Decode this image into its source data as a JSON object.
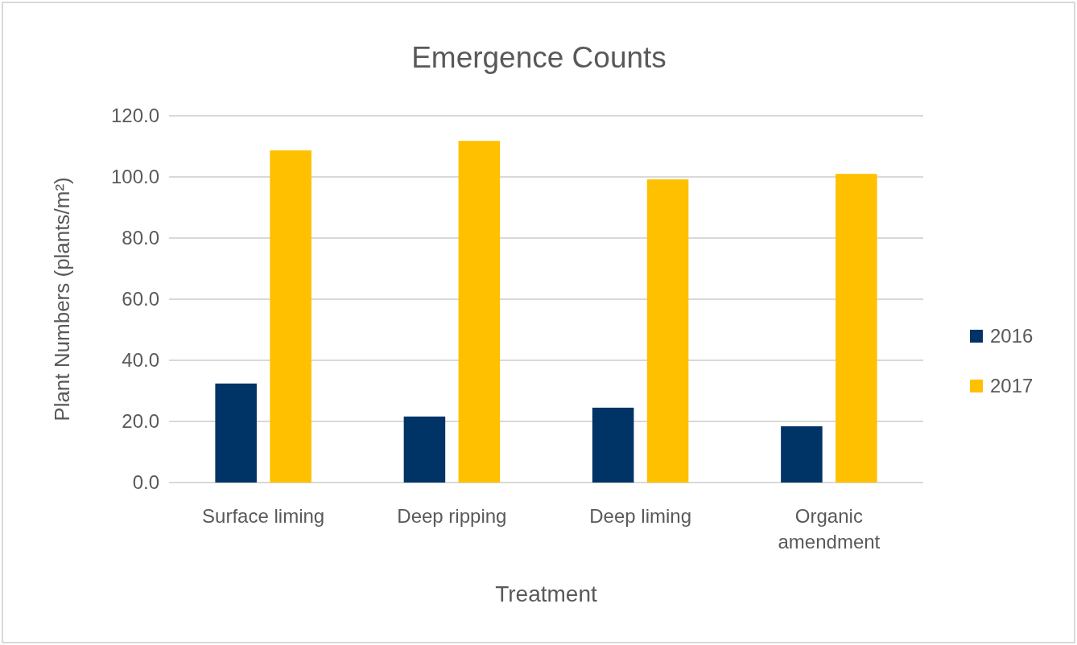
{
  "chart_data": {
    "type": "bar",
    "title": "Emergence Counts",
    "xlabel": "Treatment",
    "ylabel": "Plant Numbers (plants/m²)",
    "categories": [
      "Surface liming",
      "Deep ripping",
      "Deep liming",
      "Organic amendment"
    ],
    "series": [
      {
        "name": "2016",
        "color": "#003366",
        "values": [
          32.4,
          21.6,
          24.5,
          18.4
        ]
      },
      {
        "name": "2017",
        "color": "#ffc000",
        "values": [
          108.7,
          111.8,
          99.2,
          101.0
        ]
      }
    ],
    "ylim": [
      0,
      120
    ],
    "yticks": [
      {
        "value": 0,
        "label": "0.0"
      },
      {
        "value": 20,
        "label": "20.0"
      },
      {
        "value": 40,
        "label": "40.0"
      },
      {
        "value": 60,
        "label": "60.0"
      },
      {
        "value": 80,
        "label": "80.0"
      },
      {
        "value": 100,
        "label": "100.0"
      },
      {
        "value": 120,
        "label": "120.0"
      }
    ],
    "grid": "y",
    "legend": "right"
  }
}
